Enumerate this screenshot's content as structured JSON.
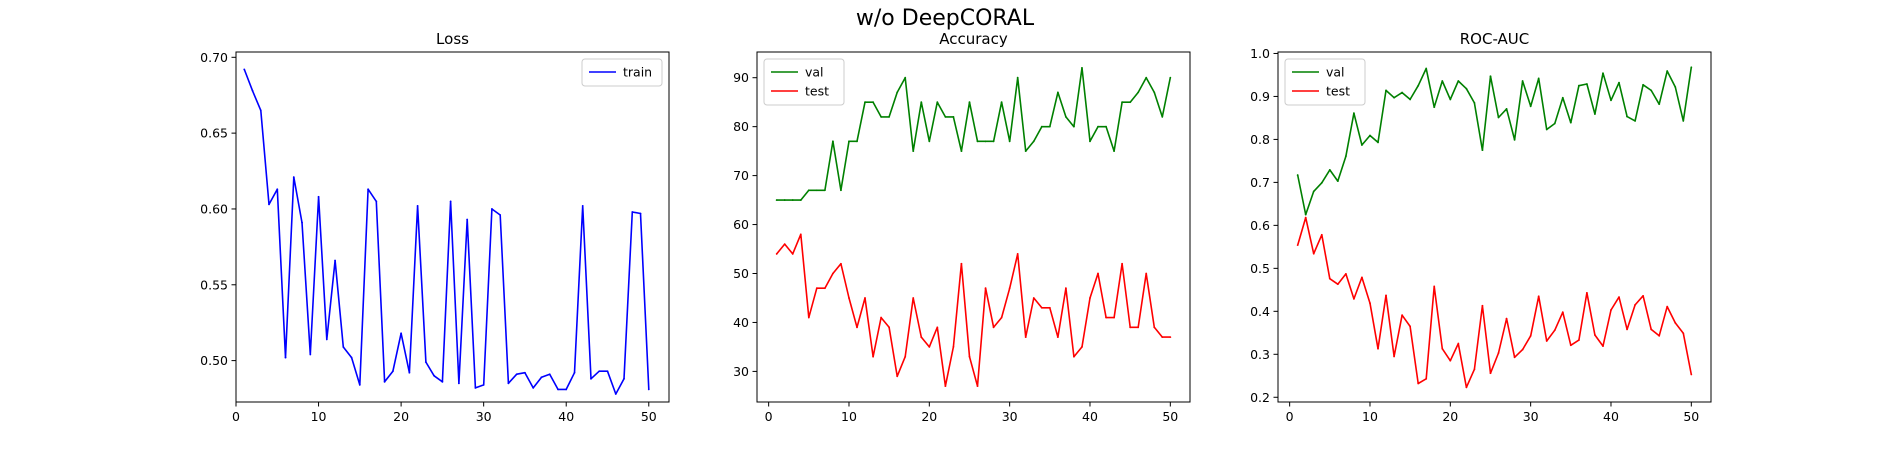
{
  "figure": {
    "suptitle": "w/o DeepCORAL"
  },
  "colors": {
    "blue": "#0000ff",
    "green": "#008000",
    "red": "#ff0000"
  },
  "chart_data": [
    {
      "type": "line",
      "title": "Loss",
      "xlabel": "",
      "ylabel": "",
      "legend": "top-right",
      "xlim": [
        0,
        52.45
      ],
      "ylim": [
        0.4727,
        0.7035
      ],
      "xticks": [
        0,
        10,
        20,
        30,
        40,
        50
      ],
      "yticks": [
        0.5,
        0.55,
        0.6,
        0.65,
        0.7
      ],
      "ytick_labels": [
        "0.50",
        "0.55",
        "0.60",
        "0.65",
        "0.70"
      ],
      "x": [
        1,
        2,
        3,
        4,
        5,
        6,
        7,
        8,
        9,
        10,
        11,
        12,
        13,
        14,
        15,
        16,
        17,
        18,
        19,
        20,
        21,
        22,
        23,
        24,
        25,
        26,
        27,
        28,
        29,
        30,
        31,
        32,
        33,
        34,
        35,
        36,
        37,
        38,
        39,
        40,
        41,
        42,
        43,
        44,
        45,
        46,
        47,
        48,
        49,
        50
      ],
      "series": [
        {
          "name": "train",
          "color": "#0000ff",
          "values": [
            0.692,
            0.678,
            0.665,
            0.603,
            0.613,
            0.502,
            0.621,
            0.591,
            0.504,
            0.608,
            0.514,
            0.566,
            0.509,
            0.502,
            0.484,
            0.613,
            0.605,
            0.486,
            0.493,
            0.518,
            0.492,
            0.602,
            0.499,
            0.49,
            0.486,
            0.605,
            0.485,
            0.593,
            0.482,
            0.484,
            0.6,
            0.596,
            0.485,
            0.491,
            0.492,
            0.482,
            0.489,
            0.491,
            0.481,
            0.481,
            0.492,
            0.602,
            0.488,
            0.493,
            0.493,
            0.478,
            0.488,
            0.598,
            0.597,
            0.481
          ]
        }
      ]
    },
    {
      "type": "line",
      "title": "Accuracy",
      "xlabel": "",
      "ylabel": "",
      "legend": "top-left",
      "xlim": [
        -1.45,
        52.45
      ],
      "ylim": [
        23.75,
        95.25
      ],
      "xticks": [
        0,
        10,
        20,
        30,
        40,
        50
      ],
      "yticks": [
        30,
        40,
        50,
        60,
        70,
        80,
        90
      ],
      "ytick_labels": [
        "30",
        "40",
        "50",
        "60",
        "70",
        "80",
        "90"
      ],
      "x": [
        1,
        2,
        3,
        4,
        5,
        6,
        7,
        8,
        9,
        10,
        11,
        12,
        13,
        14,
        15,
        16,
        17,
        18,
        19,
        20,
        21,
        22,
        23,
        24,
        25,
        26,
        27,
        28,
        29,
        30,
        31,
        32,
        33,
        34,
        35,
        36,
        37,
        38,
        39,
        40,
        41,
        42,
        43,
        44,
        45,
        46,
        47,
        48,
        49,
        50
      ],
      "series": [
        {
          "name": "val",
          "color": "#008000",
          "values": [
            65,
            65,
            65,
            65,
            67,
            67,
            67,
            77,
            67,
            77,
            77,
            85,
            85,
            82,
            82,
            87,
            90,
            75,
            85,
            77,
            85,
            82,
            82,
            75,
            85,
            77,
            77,
            77,
            85,
            77,
            90,
            75,
            77,
            80,
            80,
            87,
            82,
            80,
            92,
            77,
            80,
            80,
            75,
            85,
            85,
            87,
            90,
            87,
            82,
            90
          ]
        },
        {
          "name": "test",
          "color": "#ff0000",
          "values": [
            54,
            56,
            54,
            58,
            41,
            47,
            47,
            50,
            52,
            45,
            39,
            45,
            33,
            41,
            39,
            29,
            33,
            45,
            37,
            35,
            39,
            27,
            35,
            52,
            33,
            27,
            47,
            39,
            41,
            47,
            54,
            37,
            45,
            43,
            43,
            37,
            47,
            33,
            35,
            45,
            50,
            41,
            41,
            52,
            39,
            39,
            50,
            39,
            37,
            37
          ]
        }
      ]
    },
    {
      "type": "line",
      "title": "ROC-AUC",
      "xlabel": "",
      "ylabel": "",
      "legend": "top-left",
      "xlim": [
        -1.45,
        52.45
      ],
      "ylim": [
        0.189,
        1.0034
      ],
      "xticks": [
        0,
        10,
        20,
        30,
        40,
        50
      ],
      "yticks": [
        0.2,
        0.3,
        0.4,
        0.5,
        0.6,
        0.7,
        0.8,
        0.9,
        1.0
      ],
      "ytick_labels": [
        "0.2",
        "0.3",
        "0.4",
        "0.5",
        "0.6",
        "0.7",
        "0.8",
        "0.9",
        "1.0"
      ],
      "x": [
        1,
        2,
        3,
        4,
        5,
        6,
        7,
        8,
        9,
        10,
        11,
        12,
        13,
        14,
        15,
        16,
        17,
        18,
        19,
        20,
        21,
        22,
        23,
        24,
        25,
        26,
        27,
        28,
        29,
        30,
        31,
        32,
        33,
        34,
        35,
        36,
        37,
        38,
        39,
        40,
        41,
        42,
        43,
        44,
        45,
        46,
        47,
        48,
        49,
        50
      ],
      "series": [
        {
          "name": "val",
          "color": "#008000",
          "values": [
            0.717,
            0.625,
            0.679,
            0.699,
            0.729,
            0.703,
            0.761,
            0.861,
            0.787,
            0.809,
            0.793,
            0.914,
            0.897,
            0.909,
            0.893,
            0.925,
            0.965,
            0.875,
            0.936,
            0.893,
            0.936,
            0.918,
            0.885,
            0.775,
            0.947,
            0.851,
            0.871,
            0.799,
            0.936,
            0.877,
            0.942,
            0.823,
            0.837,
            0.897,
            0.839,
            0.925,
            0.929,
            0.859,
            0.954,
            0.891,
            0.932,
            0.853,
            0.843,
            0.927,
            0.914,
            0.882,
            0.959,
            0.922,
            0.843,
            0.968
          ]
        },
        {
          "name": "test",
          "color": "#ff0000",
          "values": [
            0.554,
            0.618,
            0.534,
            0.578,
            0.476,
            0.463,
            0.487,
            0.429,
            0.479,
            0.419,
            0.313,
            0.437,
            0.295,
            0.391,
            0.365,
            0.232,
            0.243,
            0.458,
            0.313,
            0.285,
            0.325,
            0.223,
            0.265,
            0.413,
            0.256,
            0.303,
            0.383,
            0.293,
            0.311,
            0.343,
            0.435,
            0.331,
            0.356,
            0.398,
            0.321,
            0.333,
            0.443,
            0.345,
            0.319,
            0.403,
            0.433,
            0.358,
            0.415,
            0.436,
            0.358,
            0.343,
            0.411,
            0.373,
            0.349,
            0.253
          ]
        }
      ]
    }
  ]
}
